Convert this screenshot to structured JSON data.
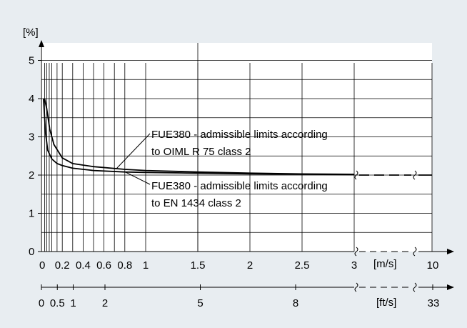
{
  "colors": {
    "background": "#e8edf1",
    "plot": "#ffffff",
    "line": "#000000",
    "grid": "#000000"
  },
  "chart_data": {
    "type": "line",
    "title": "",
    "ylabel": "[%]",
    "xlabel": "[m/s]",
    "xlabel_secondary": "[ft/s]",
    "ylim": [
      0,
      5.5
    ],
    "xlim": [
      0,
      3.5
    ],
    "y_ticks": [
      "0",
      "1",
      "2",
      "3",
      "4",
      "5"
    ],
    "x_ticks": [
      "0",
      "0.2",
      "0.4",
      "0.6",
      "0.8",
      "1",
      "1.5",
      "2",
      "2.5",
      "3"
    ],
    "x_tick_broken_end": "10",
    "ft_ticks": [
      "0",
      "0.5",
      "1",
      "2",
      "5",
      "8"
    ],
    "ft_tick_broken_end": "33",
    "axis_break": "broken axis after 3 m/s; dashed continuation to 10 m/s (33 ft/s)",
    "grid": true,
    "series": [
      {
        "label": "FUE380 - admissible limits according to OIML R 75 class 2",
        "x": [
          0.03,
          0.05,
          0.08,
          0.12,
          0.2,
          0.3,
          0.5,
          0.8,
          1.0,
          1.5,
          2.0,
          2.5,
          3.0,
          10
        ],
        "y": [
          4.0,
          3.75,
          3.2,
          2.8,
          2.45,
          2.3,
          2.22,
          2.15,
          2.12,
          2.08,
          2.05,
          2.03,
          2.02,
          2.0
        ]
      },
      {
        "label": "FUE380 - admissible limits according to EN 1434 class 2",
        "x": [
          0.02,
          0.04,
          0.06,
          0.1,
          0.15,
          0.2,
          0.3,
          0.5,
          0.8,
          1.0,
          1.5,
          2.0,
          2.5,
          3.0,
          10
        ],
        "y": [
          4.0,
          3.1,
          2.65,
          2.42,
          2.3,
          2.25,
          2.18,
          2.12,
          2.08,
          2.07,
          2.05,
          2.03,
          2.02,
          2.01,
          2.0
        ]
      }
    ]
  }
}
